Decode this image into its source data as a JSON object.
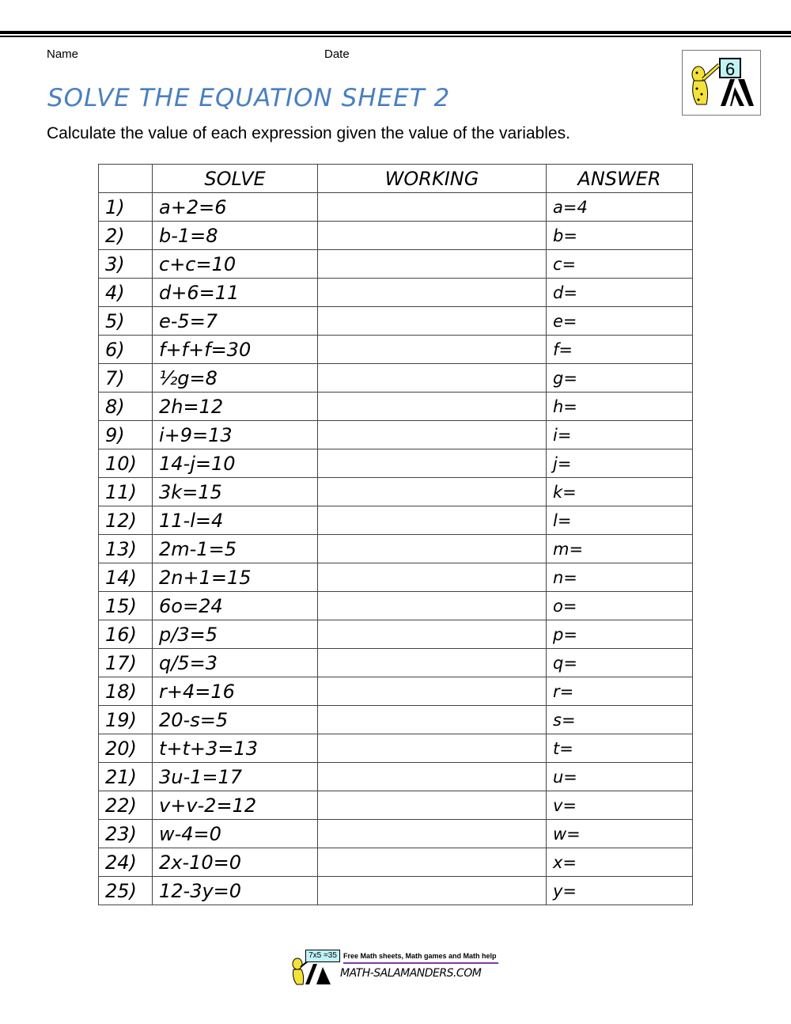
{
  "header": {
    "name_label": "Name",
    "date_label": "Date",
    "title": "SOLVE THE EQUATION SHEET 2",
    "instructions": "Calculate the value of each expression given the value of the variables.",
    "logo_text": "6"
  },
  "table": {
    "headers": [
      "",
      "SOLVE",
      "WORKING",
      "ANSWER"
    ],
    "rows": [
      {
        "n": "1)",
        "eq": "a+2=6",
        "ans": "a=4"
      },
      {
        "n": "2)",
        "eq": "b-1=8",
        "ans": "b="
      },
      {
        "n": "3)",
        "eq": "c+c=10",
        "ans": "c="
      },
      {
        "n": "4)",
        "eq": "d+6=11",
        "ans": "d="
      },
      {
        "n": "5)",
        "eq": "e-5=7",
        "ans": "e="
      },
      {
        "n": "6)",
        "eq": "f+f+f=30",
        "ans": "f="
      },
      {
        "n": "7)",
        "eq": "½g=8",
        "ans": "g="
      },
      {
        "n": "8)",
        "eq": "2h=12",
        "ans": "h="
      },
      {
        "n": "9)",
        "eq": "i+9=13",
        "ans": "i="
      },
      {
        "n": "10)",
        "eq": "14-j=10",
        "ans": "j="
      },
      {
        "n": "11)",
        "eq": "3k=15",
        "ans": "k="
      },
      {
        "n": "12)",
        "eq": "11-l=4",
        "ans": "l="
      },
      {
        "n": "13)",
        "eq": "2m-1=5",
        "ans": "m="
      },
      {
        "n": "14)",
        "eq": "2n+1=15",
        "ans": "n="
      },
      {
        "n": "15)",
        "eq": "6o=24",
        "ans": "o="
      },
      {
        "n": "16)",
        "eq": "p/3=5",
        "ans": "p="
      },
      {
        "n": "17)",
        "eq": "q/5=3",
        "ans": "q="
      },
      {
        "n": "18)",
        "eq": "r+4=16",
        "ans": "r="
      },
      {
        "n": "19)",
        "eq": "20-s=5",
        "ans": "s="
      },
      {
        "n": "20)",
        "eq": "t+t+3=13",
        "ans": "t="
      },
      {
        "n": "21)",
        "eq": "3u-1=17",
        "ans": "u="
      },
      {
        "n": "22)",
        "eq": "v+v-2=12",
        "ans": "v="
      },
      {
        "n": "23)",
        "eq": "w-4=0",
        "ans": "w="
      },
      {
        "n": "24)",
        "eq": "2x-10=0",
        "ans": "x="
      },
      {
        "n": "25)",
        "eq": "12-3y=0",
        "ans": "y="
      }
    ]
  },
  "footer": {
    "tagline": "Free Math sheets, Math games and Math help",
    "site": "MATH-SALAMANDERS.COM",
    "logo_badge": "7x5 =35"
  },
  "colors": {
    "title": "#4a7fc1",
    "footer_line": "#7a3fa0"
  }
}
